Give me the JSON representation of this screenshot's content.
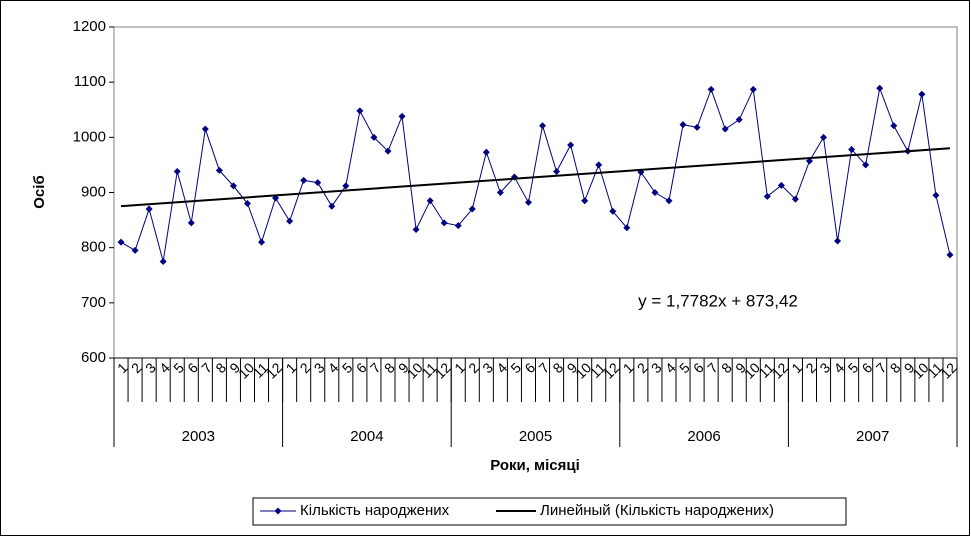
{
  "chart_data": {
    "type": "line",
    "y_label": "Осіб",
    "x_label": "Роки, місяці",
    "categories": [
      "1",
      "2",
      "3",
      "4",
      "5",
      "6",
      "7",
      "8",
      "9",
      "10",
      "11",
      "12",
      "1",
      "2",
      "3",
      "4",
      "5",
      "6",
      "7",
      "8",
      "9",
      "10",
      "11",
      "12",
      "1",
      "2",
      "3",
      "4",
      "5",
      "6",
      "7",
      "8",
      "9",
      "10",
      "11",
      "12",
      "1",
      "2",
      "3",
      "4",
      "5",
      "6",
      "7",
      "8",
      "9",
      "10",
      "11",
      "12",
      "1",
      "2",
      "3",
      "4",
      "5",
      "6",
      "7",
      "8",
      "9",
      "10",
      "11",
      "12"
    ],
    "groups": [
      "2003",
      "2004",
      "2005",
      "2006",
      "2007"
    ],
    "series": [
      {
        "name": "Кількість народжених",
        "color": "#000080",
        "values": [
          810,
          795,
          870,
          775,
          938,
          845,
          1015,
          940,
          912,
          880,
          810,
          890,
          848,
          922,
          918,
          875,
          912,
          1048,
          1000,
          975,
          1038,
          833,
          885,
          845,
          840,
          870,
          973,
          900,
          928,
          882,
          1021,
          938,
          986,
          885,
          950,
          866,
          836,
          937,
          900,
          885,
          1023,
          1018,
          1087,
          1015,
          1032,
          1087,
          893,
          913,
          888,
          957,
          1000,
          812,
          978,
          950,
          1089,
          1021,
          975,
          1078,
          895,
          787
        ]
      }
    ],
    "trendline": {
      "name": "Линейный (Кількість народжених)",
      "color": "#000000",
      "slope": 1.7782,
      "intercept": 873.42,
      "equation": "y = 1,7782x + 873,42"
    },
    "ylim": [
      600,
      1200
    ],
    "yticks": [
      600,
      700,
      800,
      900,
      1000,
      1100,
      1200
    ],
    "grid": false
  }
}
